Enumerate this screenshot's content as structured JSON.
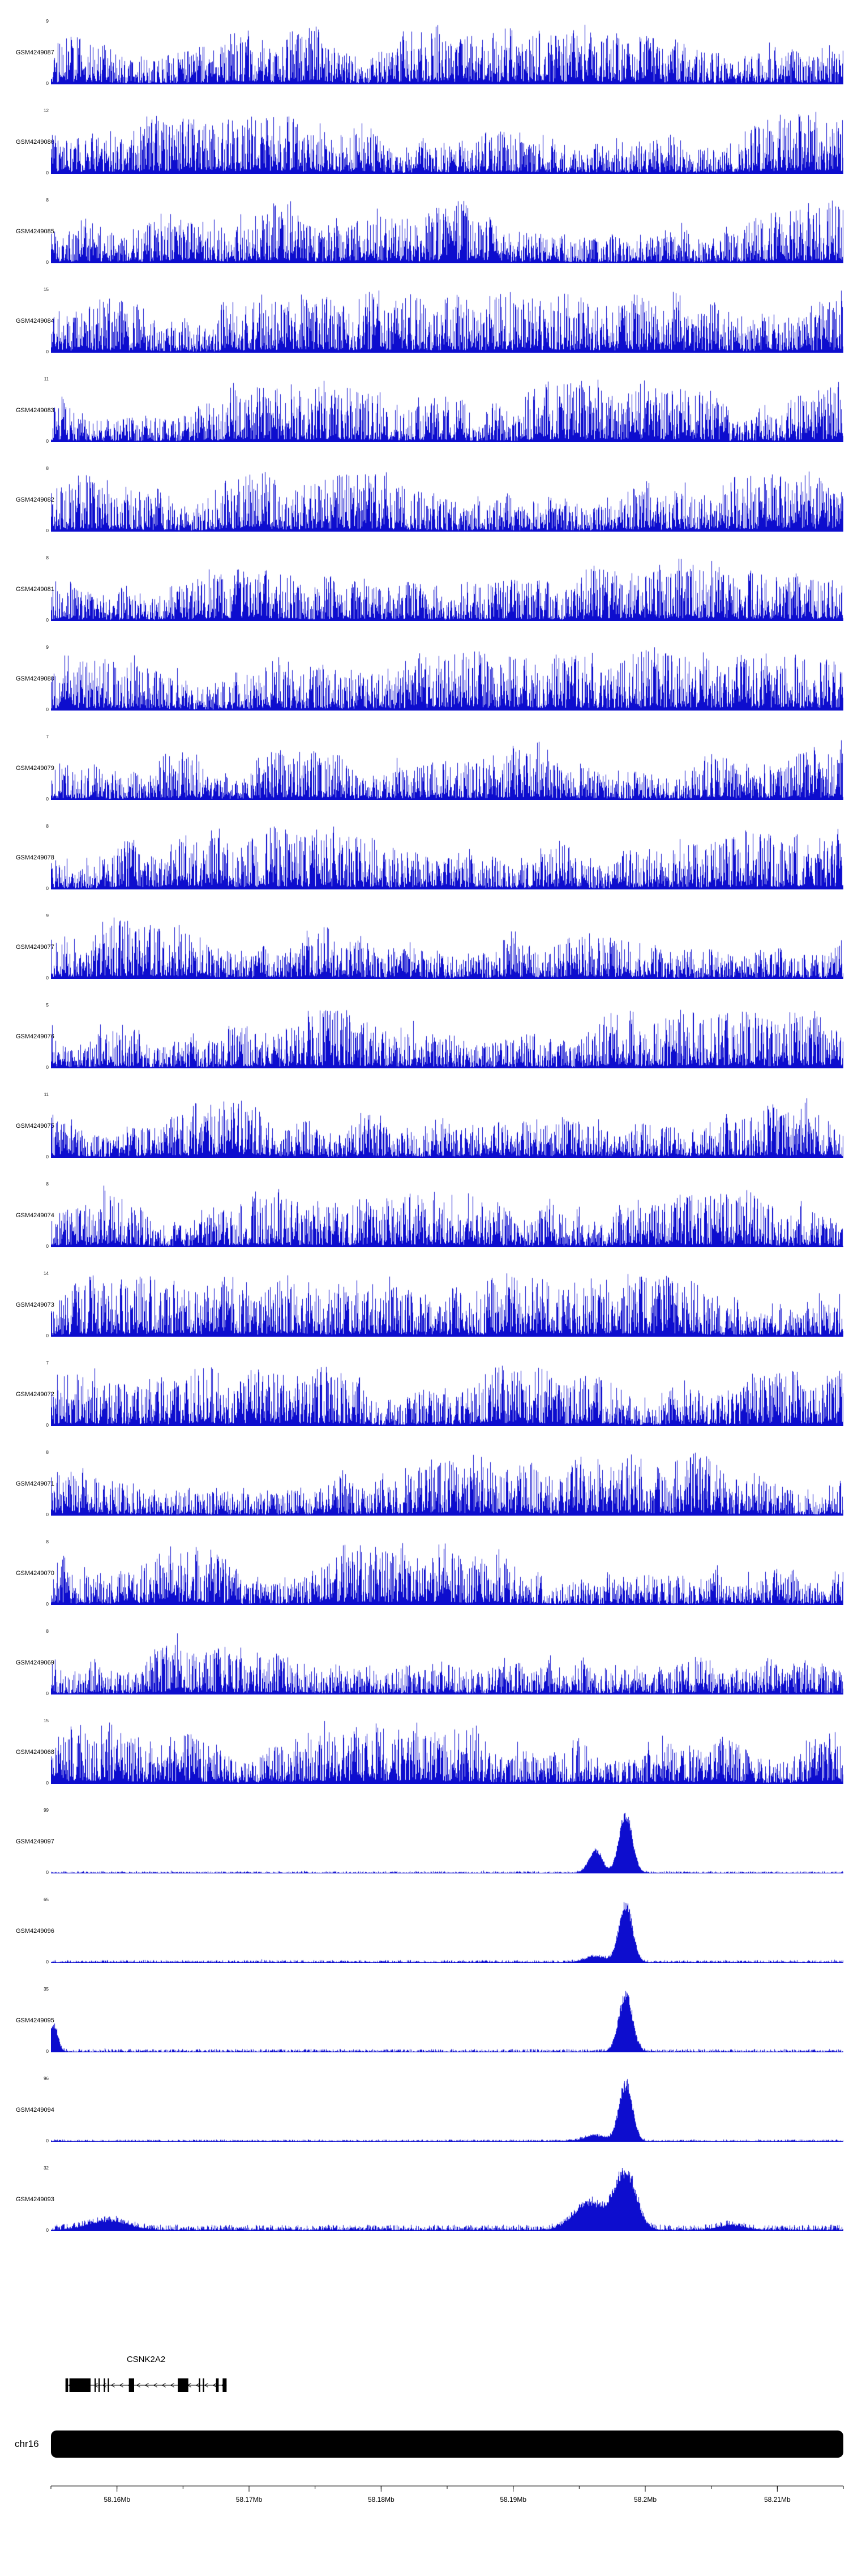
{
  "chart_data": {
    "type": "area",
    "title": "",
    "description": "Genome-browser coverage tracks (GEO GSM samples) over the CSNK2A2 locus on chr16",
    "color": "#0D0DCE",
    "x_axis": {
      "unit": "Mb",
      "min": 58.155,
      "max": 58.215,
      "tick_values": [
        58.16,
        58.17,
        58.18,
        58.19,
        58.2,
        58.21
      ],
      "tick_labels": [
        "58.16Mb",
        "58.17Mb",
        "58.18Mb",
        "58.19Mb",
        "58.2Mb",
        "58.21Mb"
      ],
      "minor_tick_step": 0.005
    },
    "chromosome": "chr16",
    "gene": {
      "name": "CSNK2A2",
      "strand": "-",
      "start": 58.1561,
      "end": 58.1683,
      "exons": [
        [
          58.1561,
          58.1563
        ],
        [
          58.1564,
          58.158
        ],
        [
          58.1583,
          58.1584
        ],
        [
          58.1586,
          58.1587
        ],
        [
          58.159,
          58.1591
        ],
        [
          58.1593,
          58.1594
        ],
        [
          58.1609,
          58.1613
        ],
        [
          58.1646,
          58.1654
        ],
        [
          58.1662,
          58.1663
        ],
        [
          58.1665,
          58.1666
        ],
        [
          58.1675,
          58.1677
        ],
        [
          58.168,
          58.1683
        ]
      ]
    },
    "tracks": [
      {
        "name": "GSM4249087",
        "ymin": 0,
        "ymax": 9,
        "signal": "broad",
        "seed": 11
      },
      {
        "name": "GSM4249086",
        "ymin": 0,
        "ymax": 12,
        "signal": "broad",
        "seed": 12
      },
      {
        "name": "GSM4249085",
        "ymin": 0,
        "ymax": 8,
        "signal": "broad",
        "seed": 13
      },
      {
        "name": "GSM4249084",
        "ymin": 0,
        "ymax": 15,
        "signal": "broad",
        "seed": 14
      },
      {
        "name": "GSM4249083",
        "ymin": 0,
        "ymax": 11,
        "signal": "broad",
        "seed": 15
      },
      {
        "name": "GSM4249082",
        "ymin": 0,
        "ymax": 8,
        "signal": "broad",
        "seed": 16
      },
      {
        "name": "GSM4249081",
        "ymin": 0,
        "ymax": 8,
        "signal": "broad",
        "seed": 17
      },
      {
        "name": "GSM4249080",
        "ymin": 0,
        "ymax": 9,
        "signal": "broad",
        "seed": 18
      },
      {
        "name": "GSM4249079",
        "ymin": 0,
        "ymax": 7,
        "signal": "broad",
        "seed": 19
      },
      {
        "name": "GSM4249078",
        "ymin": 0,
        "ymax": 8,
        "signal": "broad",
        "seed": 20
      },
      {
        "name": "GSM4249077",
        "ymin": 0,
        "ymax": 9,
        "signal": "broad",
        "seed": 21
      },
      {
        "name": "GSM4249076",
        "ymin": 0,
        "ymax": 5,
        "signal": "broad",
        "seed": 22
      },
      {
        "name": "GSM4249075",
        "ymin": 0,
        "ymax": 11,
        "signal": "broad",
        "seed": 23
      },
      {
        "name": "GSM4249074",
        "ymin": 0,
        "ymax": 8,
        "signal": "broad",
        "seed": 24
      },
      {
        "name": "GSM4249073",
        "ymin": 0,
        "ymax": 14,
        "signal": "broad",
        "seed": 25
      },
      {
        "name": "GSM4249072",
        "ymin": 0,
        "ymax": 7,
        "signal": "broad",
        "seed": 26
      },
      {
        "name": "GSM4249071",
        "ymin": 0,
        "ymax": 8,
        "signal": "broad",
        "seed": 27
      },
      {
        "name": "GSM4249070",
        "ymin": 0,
        "ymax": 8,
        "signal": "broad",
        "seed": 28
      },
      {
        "name": "GSM4249069",
        "ymin": 0,
        "ymax": 8,
        "signal": "broad",
        "seed": 29
      },
      {
        "name": "GSM4249068",
        "ymin": 0,
        "ymax": 15,
        "signal": "broad",
        "seed": 30
      },
      {
        "name": "GSM4249097",
        "ymin": 0,
        "ymax": 99,
        "signal": "sharp_peak",
        "seed": 31,
        "baseline": 0.02,
        "peaks": [
          {
            "mb": 58.1985,
            "amp": 1.0,
            "sigma": 0.0005
          },
          {
            "mb": 58.1962,
            "amp": 0.38,
            "sigma": 0.0005
          }
        ]
      },
      {
        "name": "GSM4249096",
        "ymin": 0,
        "ymax": 65,
        "signal": "sharp_peak",
        "seed": 32,
        "baseline": 0.025,
        "peaks": [
          {
            "mb": 58.1985,
            "amp": 1.0,
            "sigma": 0.0005
          },
          {
            "mb": 58.1962,
            "amp": 0.1,
            "sigma": 0.0008
          }
        ]
      },
      {
        "name": "GSM4249095",
        "ymin": 0,
        "ymax": 35,
        "signal": "sharp_peak",
        "seed": 33,
        "baseline": 0.03,
        "peaks": [
          {
            "mb": 58.1985,
            "amp": 1.0,
            "sigma": 0.0005
          },
          {
            "mb": 58.1552,
            "amp": 0.45,
            "sigma": 0.0003
          }
        ]
      },
      {
        "name": "GSM4249094",
        "ymin": 0,
        "ymax": 96,
        "signal": "sharp_peak",
        "seed": 34,
        "baseline": 0.02,
        "peaks": [
          {
            "mb": 58.1985,
            "amp": 1.0,
            "sigma": 0.0005
          },
          {
            "mb": 58.1962,
            "amp": 0.1,
            "sigma": 0.0008
          }
        ]
      },
      {
        "name": "GSM4249093",
        "ymin": 0,
        "ymax": 32,
        "signal": "sharp_peak",
        "seed": 35,
        "baseline": 0.06,
        "peaks": [
          {
            "mb": 58.1985,
            "amp": 0.95,
            "sigma": 0.0008
          },
          {
            "mb": 58.1958,
            "amp": 0.45,
            "sigma": 0.0012
          },
          {
            "mb": 58.1593,
            "amp": 0.16,
            "sigma": 0.0015
          },
          {
            "mb": 58.2065,
            "amp": 0.08,
            "sigma": 0.001
          }
        ]
      }
    ]
  }
}
